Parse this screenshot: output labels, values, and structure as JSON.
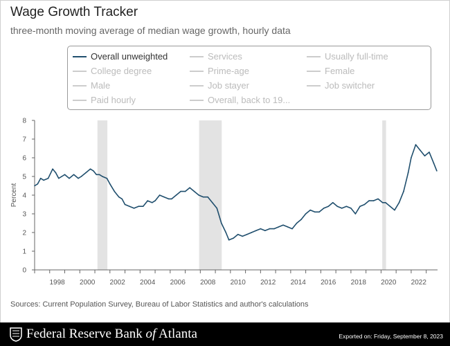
{
  "header": {
    "title": "Wage Growth Tracker",
    "subtitle": "three-month moving average of median wage growth, hourly data"
  },
  "legend": {
    "items": [
      {
        "label": "Overall unweighted",
        "active": true
      },
      {
        "label": "Services",
        "active": false
      },
      {
        "label": "Usually full-time",
        "active": false
      },
      {
        "label": "College degree",
        "active": false
      },
      {
        "label": "Prime-age",
        "active": false
      },
      {
        "label": "Female",
        "active": false
      },
      {
        "label": "Male",
        "active": false
      },
      {
        "label": "Job stayer",
        "active": false
      },
      {
        "label": "Job switcher",
        "active": false
      },
      {
        "label": "Paid hourly",
        "active": false
      },
      {
        "label": "Overall, back to 19...",
        "active": false
      }
    ]
  },
  "colors": {
    "series": "#1f4e6d",
    "recession": "#e3e3e3",
    "axis": "#555555"
  },
  "chart_data": {
    "type": "line",
    "ylabel": "Percent",
    "xlabel": "",
    "ylim": [
      0,
      8
    ],
    "xlim": [
      1997.0,
      2023.75
    ],
    "yticks": [
      0,
      1,
      2,
      3,
      4,
      5,
      6,
      7,
      8
    ],
    "xticks": [
      1998,
      2000,
      2002,
      2004,
      2006,
      2008,
      2010,
      2012,
      2014,
      2016,
      2018,
      2020,
      2022
    ],
    "grid": false,
    "legend_position": "top",
    "recessions": [
      [
        2001.17,
        2001.83
      ],
      [
        2007.92,
        2009.42
      ],
      [
        2020.08,
        2020.33
      ]
    ],
    "series": [
      {
        "name": "Overall unweighted",
        "x": [
          1997.0,
          1997.2,
          1997.4,
          1997.6,
          1997.9,
          1998.2,
          1998.4,
          1998.6,
          1998.8,
          1999.0,
          1999.3,
          1999.6,
          1999.9,
          2000.1,
          2000.4,
          2000.7,
          2000.9,
          2001.1,
          2001.3,
          2001.5,
          2001.8,
          2002.0,
          2002.3,
          2002.6,
          2002.8,
          2003.0,
          2003.3,
          2003.6,
          2003.9,
          2004.2,
          2004.5,
          2004.8,
          2005.0,
          2005.3,
          2005.6,
          2005.9,
          2006.1,
          2006.4,
          2006.7,
          2007.0,
          2007.3,
          2007.6,
          2007.9,
          2008.2,
          2008.5,
          2008.8,
          2009.1,
          2009.4,
          2009.7,
          2009.9,
          2010.2,
          2010.5,
          2010.8,
          2011.1,
          2011.4,
          2011.7,
          2012.0,
          2012.3,
          2012.6,
          2012.9,
          2013.2,
          2013.5,
          2013.8,
          2014.1,
          2014.4,
          2014.7,
          2015.0,
          2015.3,
          2015.6,
          2015.9,
          2016.2,
          2016.5,
          2016.8,
          2017.1,
          2017.4,
          2017.7,
          2018.0,
          2018.3,
          2018.6,
          2018.9,
          2019.2,
          2019.5,
          2019.8,
          2020.1,
          2020.3,
          2020.6,
          2020.9,
          2021.2,
          2021.5,
          2021.8,
          2022.0,
          2022.3,
          2022.6,
          2022.9,
          2023.2,
          2023.5,
          2023.7
        ],
        "y": [
          4.5,
          4.6,
          4.9,
          4.8,
          4.9,
          5.4,
          5.2,
          4.9,
          5.0,
          5.1,
          4.9,
          5.1,
          4.9,
          5.0,
          5.2,
          5.4,
          5.3,
          5.1,
          5.1,
          5.0,
          4.9,
          4.6,
          4.2,
          3.9,
          3.8,
          3.5,
          3.4,
          3.3,
          3.4,
          3.4,
          3.7,
          3.6,
          3.7,
          4.0,
          3.9,
          3.8,
          3.8,
          4.0,
          4.2,
          4.2,
          4.4,
          4.2,
          4.0,
          3.9,
          3.9,
          3.6,
          3.3,
          2.5,
          2.0,
          1.6,
          1.7,
          1.9,
          1.8,
          1.9,
          2.0,
          2.1,
          2.2,
          2.1,
          2.2,
          2.2,
          2.3,
          2.4,
          2.3,
          2.2,
          2.5,
          2.7,
          3.0,
          3.2,
          3.1,
          3.1,
          3.3,
          3.4,
          3.6,
          3.4,
          3.3,
          3.4,
          3.3,
          3.0,
          3.4,
          3.5,
          3.7,
          3.7,
          3.8,
          3.6,
          3.6,
          3.4,
          3.2,
          3.6,
          4.2,
          5.2,
          6.0,
          6.7,
          6.4,
          6.1,
          6.3,
          5.7,
          5.3
        ]
      }
    ]
  },
  "sources": "Sources: Current Population Survey, Bureau of Labor Statistics and author's calculations",
  "footer": {
    "brand_prefix": "Federal Reserve Bank ",
    "brand_of": "of",
    "brand_suffix": " Atlanta",
    "exported": "Exported on: Friday, September 8, 2023"
  }
}
